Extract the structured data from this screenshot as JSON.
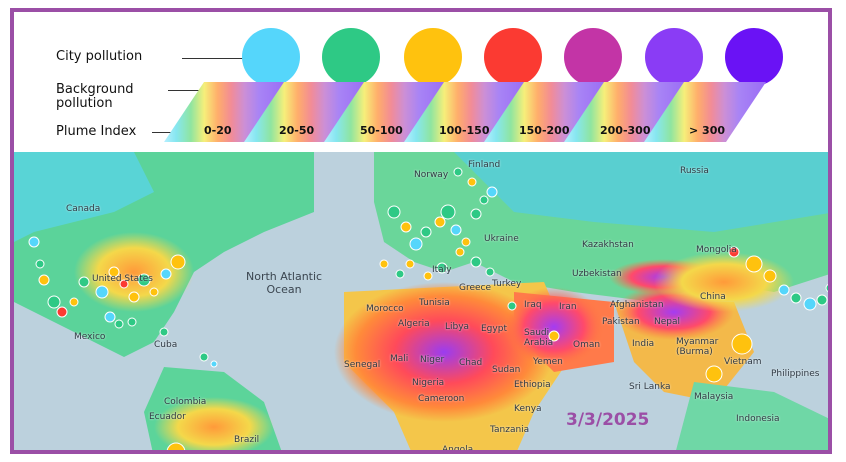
{
  "legend": {
    "city_label": "City pollution",
    "background_label": "Background\npollution",
    "plume_label": "Plume Index",
    "categories": [
      {
        "range": "0-20",
        "color": "#55d6fb"
      },
      {
        "range": "20-50",
        "color": "#2ec985"
      },
      {
        "range": "50-100",
        "color": "#ffc20e"
      },
      {
        "range": "100-150",
        "color": "#fb3a32"
      },
      {
        "range": "150-200",
        "color": "#c334a6"
      },
      {
        "range": "200-300",
        "color": "#8a3cf5"
      },
      {
        "range": "> 300",
        "color": "#6a12f5"
      }
    ]
  },
  "map": {
    "places": [
      {
        "id": "canada",
        "name": "Canada"
      },
      {
        "id": "united-states",
        "name": "United States"
      },
      {
        "id": "mexico",
        "name": "Mexico"
      },
      {
        "id": "cuba",
        "name": "Cuba"
      },
      {
        "id": "colombia",
        "name": "Colombia"
      },
      {
        "id": "ecuador",
        "name": "Ecuador"
      },
      {
        "id": "brazil",
        "name": "Brazil"
      },
      {
        "id": "finland",
        "name": "Finland"
      },
      {
        "id": "norway",
        "name": "Norway"
      },
      {
        "id": "russia",
        "name": "Russia"
      },
      {
        "id": "ukraine",
        "name": "Ukraine"
      },
      {
        "id": "italy",
        "name": "Italy"
      },
      {
        "id": "greece",
        "name": "Greece"
      },
      {
        "id": "turkey",
        "name": "Turkey"
      },
      {
        "id": "kazakhstan",
        "name": "Kazakhstan"
      },
      {
        "id": "uzbekistan",
        "name": "Uzbekistan"
      },
      {
        "id": "mongolia",
        "name": "Mongolia"
      },
      {
        "id": "china",
        "name": "China"
      },
      {
        "id": "morocco",
        "name": "Morocco"
      },
      {
        "id": "tunisia",
        "name": "Tunisia"
      },
      {
        "id": "algeria",
        "name": "Algeria"
      },
      {
        "id": "libya",
        "name": "Libya"
      },
      {
        "id": "egypt",
        "name": "Egypt"
      },
      {
        "id": "iraq",
        "name": "Iraq"
      },
      {
        "id": "iran",
        "name": "Iran"
      },
      {
        "id": "afghanistan",
        "name": "Afghanistan"
      },
      {
        "id": "pakistan",
        "name": "Pakistan"
      },
      {
        "id": "nepal",
        "name": "Nepal"
      },
      {
        "id": "india",
        "name": "India"
      },
      {
        "id": "saudi-arabia",
        "name": "Saudi\nArabia"
      },
      {
        "id": "oman",
        "name": "Oman"
      },
      {
        "id": "yemen",
        "name": "Yemen"
      },
      {
        "id": "senegal",
        "name": "Senegal"
      },
      {
        "id": "mali",
        "name": "Mali"
      },
      {
        "id": "niger",
        "name": "Niger"
      },
      {
        "id": "chad",
        "name": "Chad"
      },
      {
        "id": "sudan",
        "name": "Sudan"
      },
      {
        "id": "nigeria",
        "name": "Nigeria"
      },
      {
        "id": "ethiopia",
        "name": "Ethiopia"
      },
      {
        "id": "cameroon",
        "name": "Cameroon"
      },
      {
        "id": "kenya",
        "name": "Kenya"
      },
      {
        "id": "tanzania",
        "name": "Tanzania"
      },
      {
        "id": "angola",
        "name": "Angola"
      },
      {
        "id": "myanmar",
        "name": "Myanmar\n(Burma)"
      },
      {
        "id": "vietnam",
        "name": "Vietnam"
      },
      {
        "id": "philippines",
        "name": "Philippines"
      },
      {
        "id": "sri-lanka",
        "name": "Sri Lanka"
      },
      {
        "id": "malaysia",
        "name": "Malaysia"
      },
      {
        "id": "indonesia",
        "name": "Indonesia"
      }
    ],
    "ocean_label": "North Atlantic\nOcean"
  },
  "date": "3/3/2025"
}
